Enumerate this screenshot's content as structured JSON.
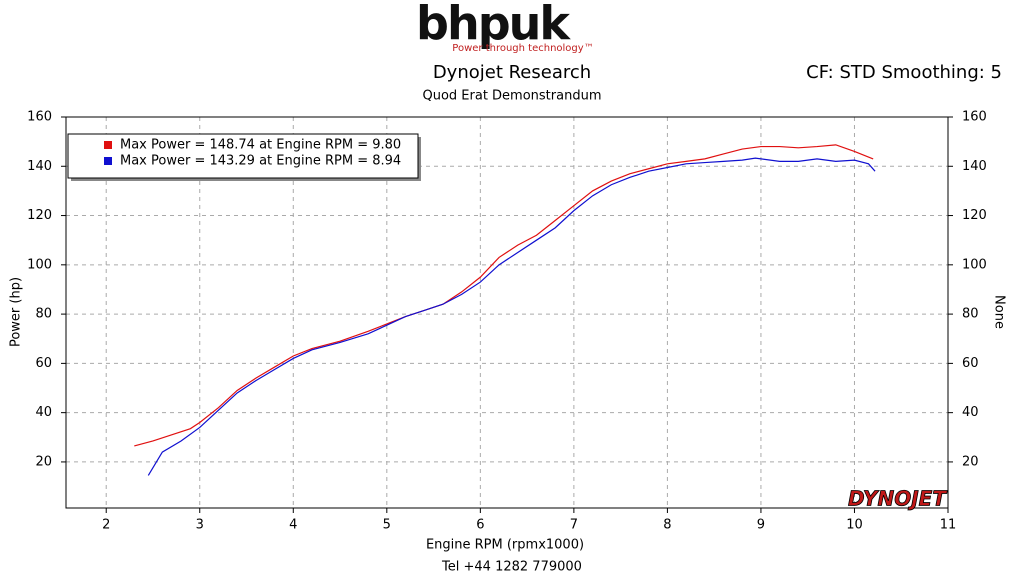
{
  "logo": {
    "text": "bhpuk",
    "tagline": "Power through technology™"
  },
  "chart_data": {
    "type": "line",
    "title": "Dynojet Research",
    "subtitle": "Quod Erat Demonstrandum",
    "settings_label": "CF: STD Smoothing: 5",
    "xlabel": "Engine RPM (rpmx1000)",
    "ylabel": "Power (hp)",
    "y2label": "None",
    "footer": "Tel +44 1282 779000",
    "watermark": "DYNOJET",
    "xlim": [
      1.57,
      11
    ],
    "xticks": [
      2,
      3,
      4,
      5,
      6,
      7,
      8,
      9,
      10,
      11
    ],
    "ylim": [
      1.3,
      160
    ],
    "yticks": [
      20,
      40,
      60,
      80,
      100,
      120,
      140,
      160
    ],
    "y2lim": [
      1.3,
      160
    ],
    "y2ticks": [
      20,
      40,
      60,
      80,
      100,
      120,
      140,
      160
    ],
    "grid": true,
    "legend": "upper-left",
    "series": [
      {
        "name": "Max Power = 148.74 at Engine RPM = 9.80",
        "color": "#e01010",
        "x": [
          2.3,
          2.5,
          2.7,
          2.9,
          3.0,
          3.2,
          3.4,
          3.6,
          3.8,
          4.0,
          4.2,
          4.5,
          4.8,
          5.0,
          5.2,
          5.4,
          5.6,
          5.8,
          6.0,
          6.2,
          6.4,
          6.6,
          6.8,
          7.0,
          7.2,
          7.4,
          7.6,
          7.8,
          8.0,
          8.2,
          8.4,
          8.6,
          8.8,
          9.0,
          9.2,
          9.4,
          9.6,
          9.8,
          10.0,
          10.2
        ],
        "values": [
          26.5,
          28.5,
          31,
          33.5,
          36,
          42,
          49,
          54,
          58.5,
          63,
          66,
          69,
          73,
          76,
          79,
          81.5,
          84,
          89,
          95,
          103,
          108,
          112,
          118,
          124,
          130,
          134,
          137,
          139,
          141,
          142,
          143,
          145,
          147,
          148,
          148,
          147.5,
          148,
          148.7,
          146,
          143
        ]
      },
      {
        "name": "Max Power = 143.29 at Engine RPM = 8.94",
        "color": "#1010d0",
        "x": [
          2.45,
          2.6,
          2.8,
          3.0,
          3.2,
          3.4,
          3.6,
          3.8,
          4.0,
          4.2,
          4.5,
          4.8,
          5.0,
          5.2,
          5.4,
          5.6,
          5.8,
          6.0,
          6.2,
          6.4,
          6.6,
          6.8,
          7.0,
          7.2,
          7.4,
          7.6,
          7.8,
          8.0,
          8.2,
          8.4,
          8.6,
          8.8,
          8.94,
          9.2,
          9.4,
          9.6,
          9.8,
          10.0,
          10.15,
          10.22
        ],
        "values": [
          14.5,
          24,
          28.5,
          34,
          41,
          48,
          53,
          57.5,
          62,
          65.5,
          68.5,
          72,
          75.5,
          79,
          81.5,
          84,
          88,
          93,
          100,
          105,
          110,
          115,
          122,
          128,
          132.5,
          135.5,
          138,
          139.5,
          141,
          141.5,
          142,
          142.5,
          143.3,
          142,
          142,
          143,
          142,
          142.5,
          141,
          138
        ]
      }
    ]
  }
}
